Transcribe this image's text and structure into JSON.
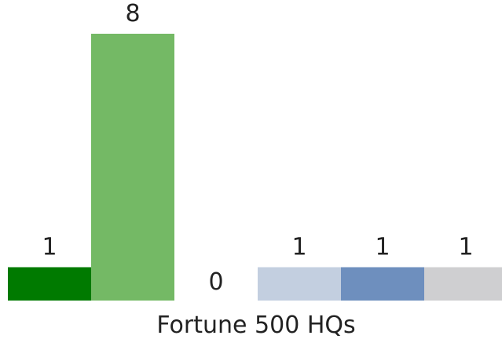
{
  "chart_data": {
    "type": "bar",
    "categories": [
      "",
      "",
      "",
      "",
      "",
      ""
    ],
    "values": [
      1,
      8,
      0,
      1,
      1,
      1
    ],
    "colors": [
      "#007a00",
      "#74b965",
      "#ffffff",
      "#c3cfe0",
      "#6e8fbe",
      "#cfcfd1"
    ],
    "xlabel": "Fortune 500 HQs",
    "ylabel": "",
    "ylim": [
      0,
      8
    ],
    "grid": false,
    "legend": "none"
  }
}
